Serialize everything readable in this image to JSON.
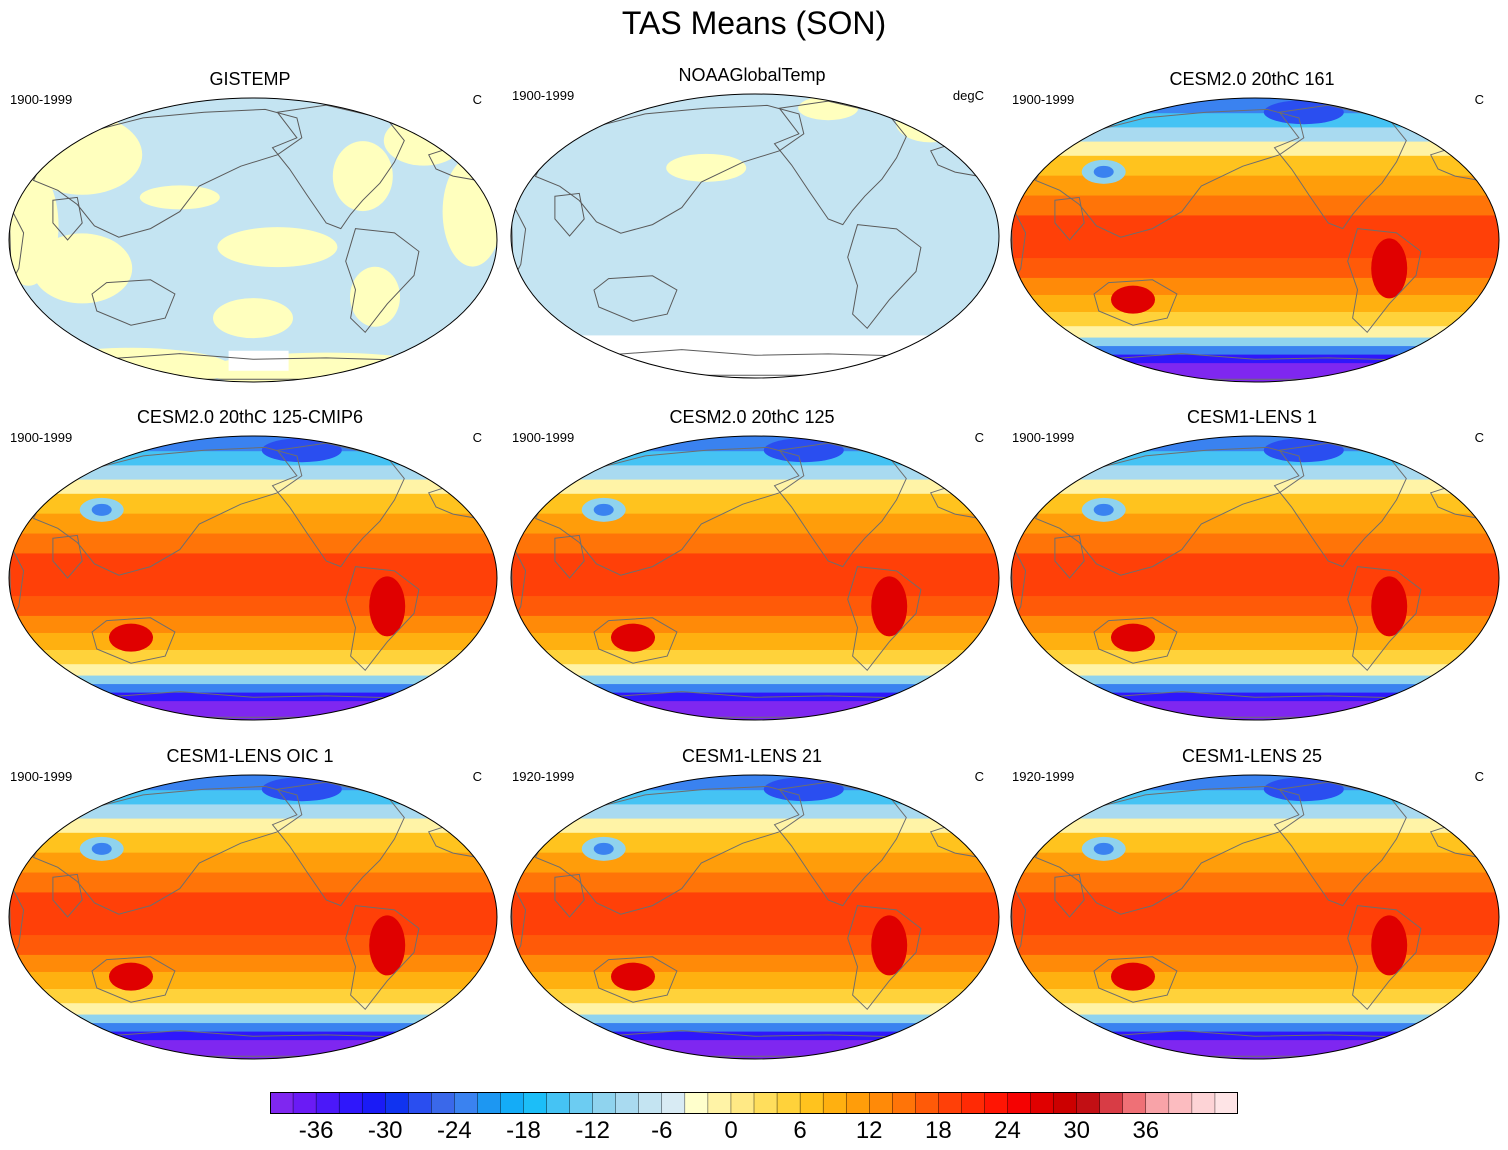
{
  "title": "TAS Means (SON)",
  "panels": [
    {
      "title": "GISTEMP",
      "period": "1900-1999",
      "units": "C",
      "kind": "obs1"
    },
    {
      "title": "NOAAGlobalTemp",
      "period": "1900-1999",
      "units": "degC",
      "kind": "obs2"
    },
    {
      "title": "CESM2.0 20thC 161",
      "period": "1900-1999",
      "units": "C",
      "kind": "model"
    },
    {
      "title": "CESM2.0 20thC 125-CMIP6",
      "period": "1900-1999",
      "units": "C",
      "kind": "model"
    },
    {
      "title": "CESM2.0 20thC 125",
      "period": "1900-1999",
      "units": "C",
      "kind": "model"
    },
    {
      "title": "CESM1-LENS 1",
      "period": "1900-1999",
      "units": "C",
      "kind": "model"
    },
    {
      "title": "CESM1-LENS OIC 1",
      "period": "1900-1999",
      "units": "C",
      "kind": "model"
    },
    {
      "title": "CESM1-LENS 21",
      "period": "1920-1999",
      "units": "C",
      "kind": "model"
    },
    {
      "title": "CESM1-LENS 25",
      "period": "1920-1999",
      "units": "C",
      "kind": "model"
    }
  ],
  "colorbar": {
    "labels": [
      "-36",
      "-30",
      "-24",
      "-18",
      "-12",
      "-6",
      "0",
      "6",
      "12",
      "18",
      "24",
      "30",
      "36"
    ],
    "min": -40,
    "max": 44,
    "step": 2,
    "colors": [
      "#7f27f0",
      "#6a1bf5",
      "#4b18f9",
      "#2f17fb",
      "#1a1bf6",
      "#1033f0",
      "#2a4ef0",
      "#3a68ea",
      "#3a82f0",
      "#1d97f2",
      "#14acf7",
      "#1cbef8",
      "#45c3f4",
      "#6cccf2",
      "#8fd3ee",
      "#a9daf0",
      "#c4e4f2",
      "#d8ebf4",
      "#ffffcc",
      "#fff3a6",
      "#ffe985",
      "#ffde5c",
      "#ffd23a",
      "#ffc31e",
      "#ffb010",
      "#ff9d0a",
      "#ff8a08",
      "#ff7408",
      "#ff5a08",
      "#ff4008",
      "#ff2a05",
      "#ff1503",
      "#f50202",
      "#e00000",
      "#cc0000",
      "#c20f14",
      "#d83c45",
      "#ef7076",
      "#f8a3a8",
      "#fcbcc0",
      "#fdd3d6",
      "#fee4e6"
    ]
  }
}
